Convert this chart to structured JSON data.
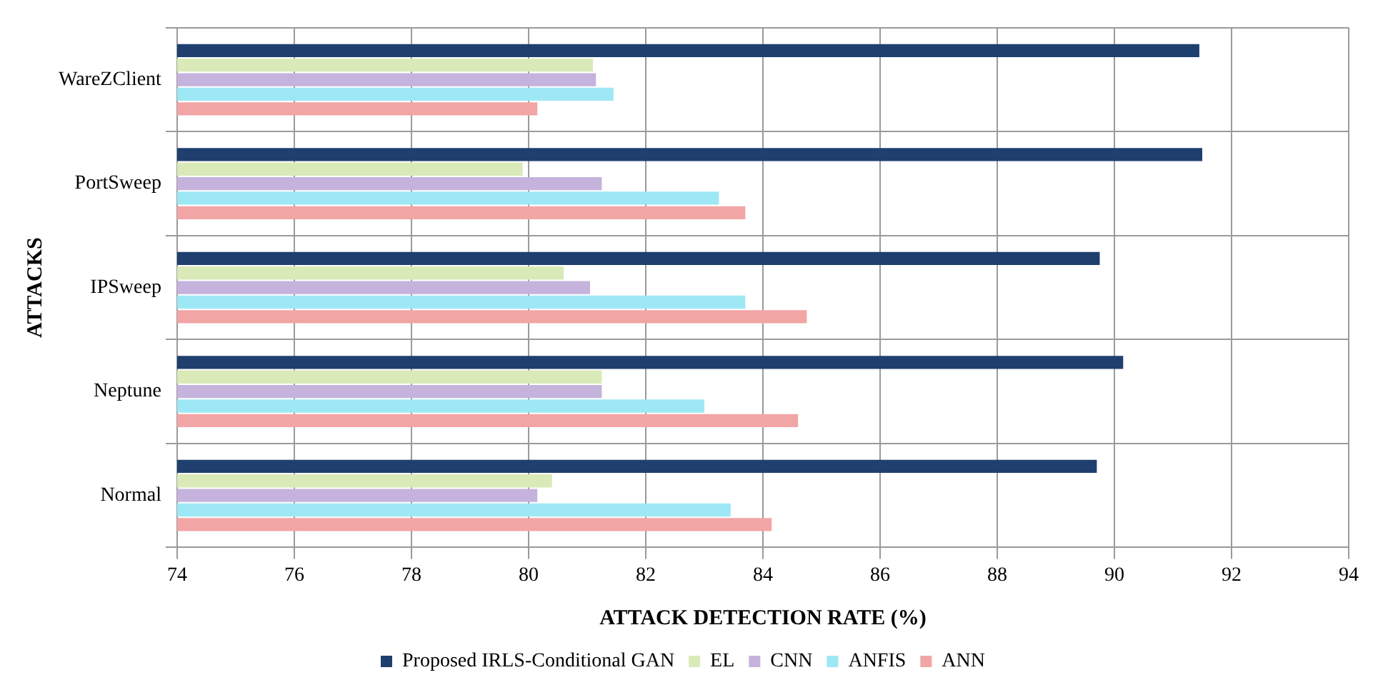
{
  "chart_data": {
    "type": "bar",
    "orientation": "horizontal",
    "xlabel": "ATTACK DETECTION RATE (%)",
    "ylabel": "ATTACKS",
    "categories": [
      "WareZClient",
      "PortSweep",
      "IPSweep",
      "Neptune",
      "Normal"
    ],
    "series": [
      {
        "name": "Proposed IRLS-Conditional GAN",
        "color": "#1f3f6e",
        "values": [
          91.45,
          91.5,
          89.75,
          90.15,
          89.7
        ]
      },
      {
        "name": "EL",
        "color": "#d9eab8",
        "values": [
          81.1,
          79.9,
          80.6,
          81.25,
          80.4
        ]
      },
      {
        "name": "CNN",
        "color": "#c5b3dd",
        "values": [
          81.15,
          81.25,
          81.05,
          81.25,
          80.15
        ]
      },
      {
        "name": "ANFIS",
        "color": "#9ee8f5",
        "values": [
          81.45,
          83.25,
          83.7,
          83.0,
          83.45
        ]
      },
      {
        "name": "ANN",
        "color": "#f2a5a5",
        "values": [
          80.15,
          83.7,
          84.75,
          84.6,
          84.15
        ]
      }
    ],
    "xlim": [
      74,
      94
    ],
    "xticks": [
      74,
      76,
      78,
      80,
      82,
      84,
      86,
      88,
      90,
      92,
      94
    ],
    "grid": true,
    "legend": "bottom"
  }
}
